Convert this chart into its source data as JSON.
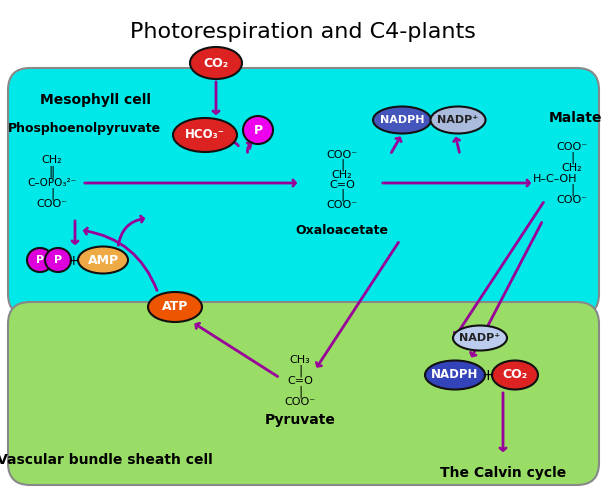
{
  "title": "Photorespiration and C4-plants",
  "title_fontsize": 16,
  "mesophyll_color": "#00E8E8",
  "vascular_color": "#99DD66",
  "mesophyll_label": "Mesophyll cell",
  "vascular_label": "Vascular bundle sheath cell",
  "calvin_label": "The Calvin cycle",
  "arrow_color": "#990099",
  "bg_color": "#FFFFFF"
}
